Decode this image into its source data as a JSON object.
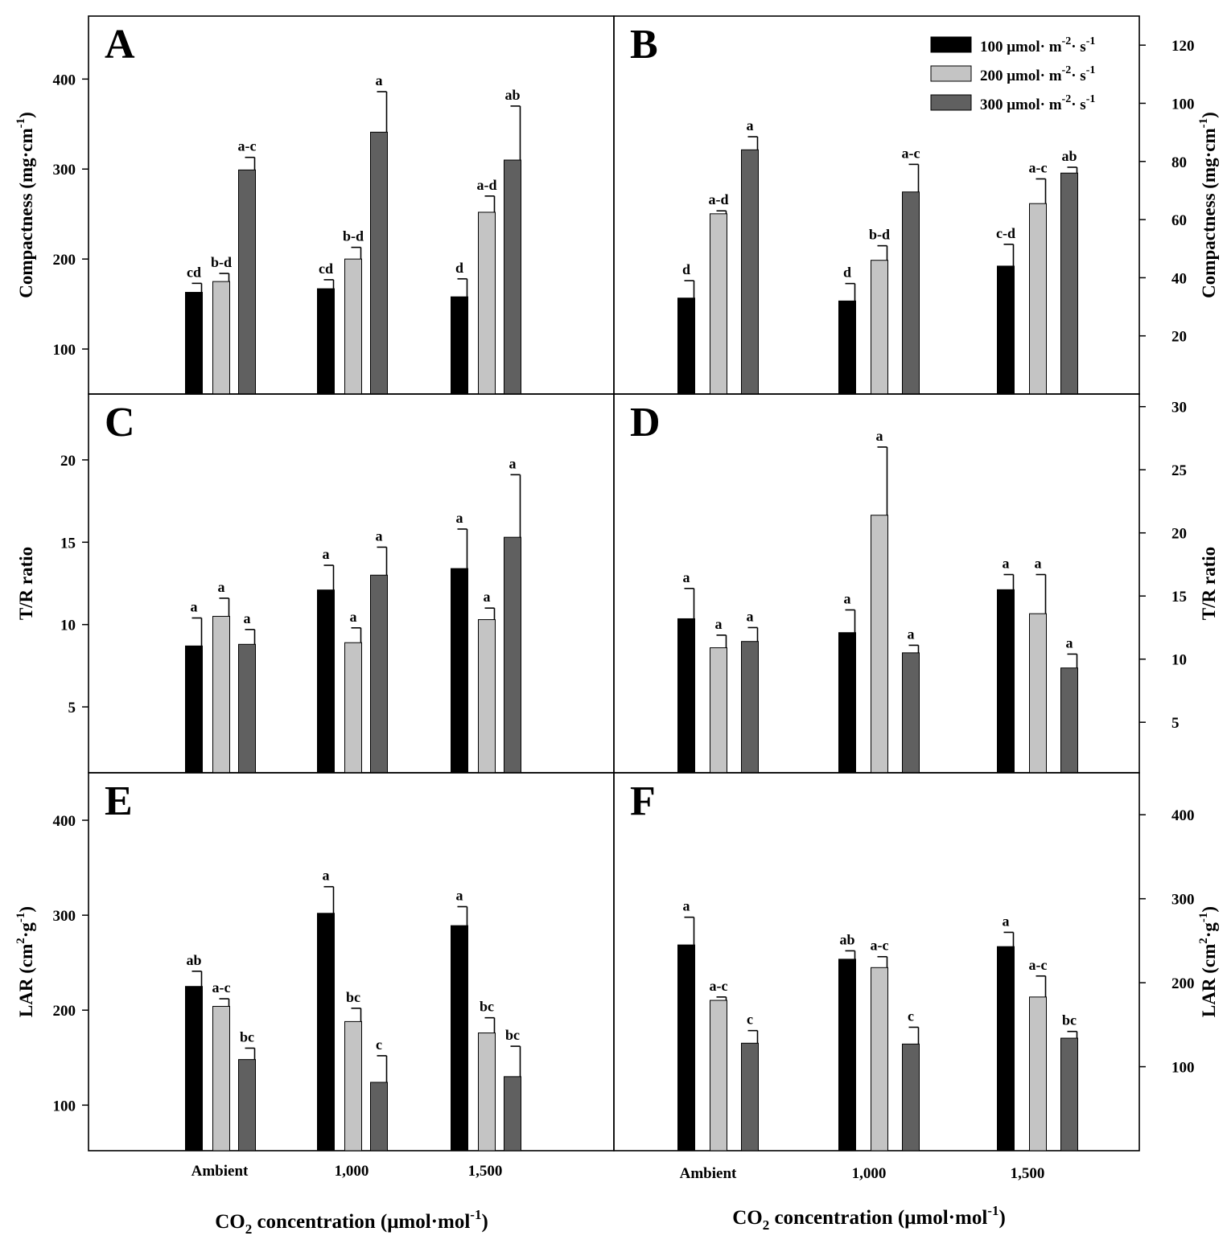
{
  "colors": {
    "s100": "#000000",
    "s200": "#c4c4c4",
    "s300": "#606060"
  },
  "legend": {
    "items": [
      {
        "key": "s100",
        "prefix": "100 μmol· m",
        "sup1": "-2",
        "mid": "· s",
        "sup2": "-1"
      },
      {
        "key": "s200",
        "prefix": "200 μmol· m",
        "sup1": "-2",
        "mid": "· s",
        "sup2": "-1"
      },
      {
        "key": "s300",
        "prefix": "300 μmol· m",
        "sup1": "-2",
        "mid": "· s",
        "sup2": "-1"
      }
    ]
  },
  "x_axis": {
    "categories": [
      "Ambient",
      "1,000",
      "1,500"
    ],
    "label_left": {
      "pre": "CO",
      "sub": "2",
      "mid": " concentration (μmol·mol",
      "sup": "-1",
      "post": ")"
    },
    "label_right": {
      "pre": "CO",
      "sub": "2",
      "mid": " concentration (μmol·mol",
      "sup": "-1",
      "post": ")"
    }
  },
  "chart_data": [
    {
      "panel": "A",
      "type": "bar",
      "axis_side": "left",
      "ylabel": {
        "pre": "Compactness (mg·cm",
        "sup": "-1",
        "post": ")"
      },
      "ylim": [
        50,
        470
      ],
      "yticks": [
        100,
        200,
        300,
        400
      ],
      "categories": [
        "Ambient",
        "1,000",
        "1,500"
      ],
      "series": [
        {
          "key": "s100",
          "values": [
            163,
            167,
            158
          ],
          "errors": [
            10,
            10,
            20
          ],
          "labels": [
            "cd",
            "cd",
            "d"
          ]
        },
        {
          "key": "s200",
          "values": [
            175,
            200,
            252
          ],
          "errors": [
            9,
            13,
            18
          ],
          "labels": [
            "b-d",
            "b-d",
            "a-d"
          ]
        },
        {
          "key": "s300",
          "values": [
            299,
            341,
            310
          ],
          "errors": [
            14,
            45,
            60
          ],
          "labels": [
            "a-c",
            "a",
            "ab"
          ]
        }
      ]
    },
    {
      "panel": "B",
      "type": "bar",
      "axis_side": "right",
      "ylabel": {
        "pre": "Compactness (mg·cm",
        "sup": "-1",
        "post": ")"
      },
      "ylim": [
        0,
        130
      ],
      "yticks": [
        20,
        40,
        60,
        80,
        100,
        120
      ],
      "categories": [
        "Ambient",
        "1,000",
        "1,500"
      ],
      "series": [
        {
          "key": "s100",
          "values": [
            33,
            32,
            44
          ],
          "errors": [
            6,
            6,
            7.5
          ],
          "labels": [
            "d",
            "d",
            "c-d"
          ]
        },
        {
          "key": "s200",
          "values": [
            62,
            46,
            65.5
          ],
          "errors": [
            1,
            5,
            8.5
          ],
          "labels": [
            "a-d",
            "b-d",
            "a-c"
          ]
        },
        {
          "key": "s300",
          "values": [
            84,
            69.5,
            76
          ],
          "errors": [
            4.5,
            9.5,
            2
          ],
          "labels": [
            "a",
            "a-c",
            "ab"
          ]
        }
      ]
    },
    {
      "panel": "C",
      "type": "bar",
      "axis_side": "left",
      "ylabel": {
        "pre": "T/R ratio",
        "sup": "",
        "post": ""
      },
      "ylim": [
        1,
        24
      ],
      "yticks": [
        5,
        10,
        15,
        20
      ],
      "categories": [
        "Ambient",
        "1,000",
        "1,500"
      ],
      "series": [
        {
          "key": "s100",
          "values": [
            8.7,
            12.1,
            13.4
          ],
          "errors": [
            1.7,
            1.5,
            2.4
          ],
          "labels": [
            "a",
            "a",
            "a"
          ]
        },
        {
          "key": "s200",
          "values": [
            10.5,
            8.9,
            10.3
          ],
          "errors": [
            1.1,
            0.9,
            0.7
          ],
          "labels": [
            "a",
            "a",
            "a"
          ]
        },
        {
          "key": "s300",
          "values": [
            8.8,
            13.0,
            15.3
          ],
          "errors": [
            0.9,
            1.7,
            3.8
          ],
          "labels": [
            "a",
            "a",
            "a"
          ]
        }
      ]
    },
    {
      "panel": "D",
      "type": "bar",
      "axis_side": "right",
      "ylabel": {
        "pre": "T/R ratio",
        "sup": "",
        "post": ""
      },
      "ylim": [
        1,
        31
      ],
      "yticks": [
        5,
        10,
        15,
        20,
        25,
        30
      ],
      "categories": [
        "Ambient",
        "1,000",
        "1,500"
      ],
      "series": [
        {
          "key": "s100",
          "values": [
            13.2,
            12.1,
            15.5
          ],
          "errors": [
            2.4,
            1.8,
            1.2
          ],
          "labels": [
            "a",
            "a",
            "a"
          ]
        },
        {
          "key": "s200",
          "values": [
            10.9,
            21.4,
            13.6
          ],
          "errors": [
            1.0,
            5.4,
            3.1
          ],
          "labels": [
            "a",
            "a",
            "a"
          ]
        },
        {
          "key": "s300",
          "values": [
            11.4,
            10.5,
            9.3
          ],
          "errors": [
            1.1,
            0.6,
            1.1
          ],
          "labels": [
            "a",
            "a",
            "a"
          ]
        }
      ]
    },
    {
      "panel": "E",
      "type": "bar",
      "axis_side": "left",
      "ylabel": {
        "pre": "LAR (cm",
        "sup": "2",
        "mid": "·g",
        "sup2": "-1",
        "post": ")"
      },
      "ylim": [
        52,
        450
      ],
      "yticks": [
        100,
        200,
        300,
        400
      ],
      "categories": [
        "Ambient",
        "1,000",
        "1,500"
      ],
      "series": [
        {
          "key": "s100",
          "values": [
            225,
            302,
            289
          ],
          "errors": [
            16,
            28,
            20
          ],
          "labels": [
            "ab",
            "a",
            "a"
          ]
        },
        {
          "key": "s200",
          "values": [
            204,
            188,
            176
          ],
          "errors": [
            8,
            14,
            16
          ],
          "labels": [
            "a-c",
            "bc",
            "bc"
          ]
        },
        {
          "key": "s300",
          "values": [
            148,
            124,
            130
          ],
          "errors": [
            12,
            28,
            32
          ],
          "labels": [
            "bc",
            "c",
            "bc"
          ]
        }
      ]
    },
    {
      "panel": "F",
      "type": "bar",
      "axis_side": "right",
      "ylabel": {
        "pre": "LAR (cm",
        "sup": "2",
        "mid": "·g",
        "sup2": "-1",
        "post": ")"
      },
      "ylim": [
        0,
        450
      ],
      "yticks": [
        100,
        200,
        300,
        400
      ],
      "categories": [
        "Ambient",
        "1,000",
        "1,500"
      ],
      "series": [
        {
          "key": "s100",
          "values": [
            245,
            228,
            243
          ],
          "errors": [
            33,
            10,
            17
          ],
          "labels": [
            "a",
            "ab",
            "a"
          ]
        },
        {
          "key": "s200",
          "values": [
            179,
            218,
            183
          ],
          "errors": [
            4,
            13,
            25
          ],
          "labels": [
            "a-c",
            "a-c",
            "a-c"
          ]
        },
        {
          "key": "s300",
          "values": [
            128,
            127,
            134
          ],
          "errors": [
            15,
            20,
            8
          ],
          "labels": [
            "c",
            "c",
            "bc"
          ]
        }
      ]
    }
  ]
}
